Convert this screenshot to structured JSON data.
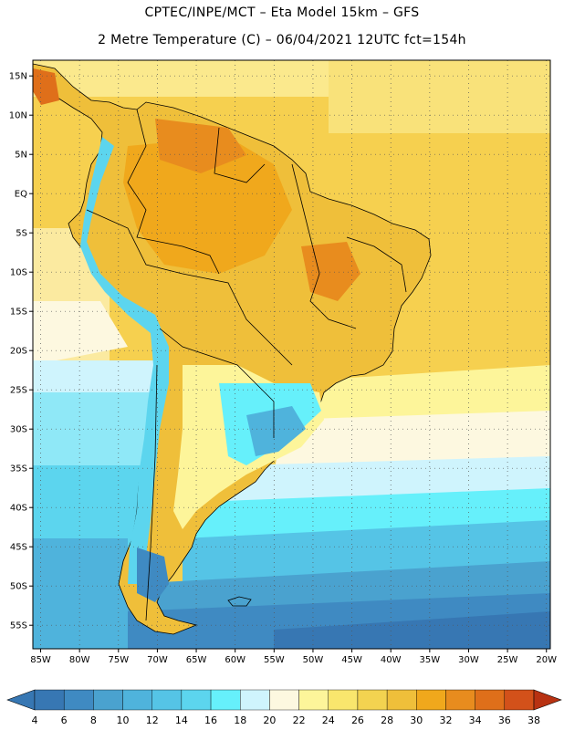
{
  "header": {
    "title_line1": "CPTEC/INPE/MCT –  Eta Model 15km – GFS",
    "title_line2": "2 Metre Temperature (C) – 06/04/2021 12UTC fct=154h"
  },
  "map": {
    "lon_range": [
      -86,
      -19.5
    ],
    "lat_range": [
      -58,
      17
    ],
    "lon_ticks": [
      {
        "value": -85,
        "label": "85W"
      },
      {
        "value": -80,
        "label": "80W"
      },
      {
        "value": -75,
        "label": "75W"
      },
      {
        "value": -70,
        "label": "70W"
      },
      {
        "value": -65,
        "label": "65W"
      },
      {
        "value": -60,
        "label": "60W"
      },
      {
        "value": -55,
        "label": "55W"
      },
      {
        "value": -50,
        "label": "50W"
      },
      {
        "value": -45,
        "label": "45W"
      },
      {
        "value": -40,
        "label": "40W"
      },
      {
        "value": -35,
        "label": "35W"
      },
      {
        "value": -30,
        "label": "30W"
      },
      {
        "value": -25,
        "label": "25W"
      },
      {
        "value": -20,
        "label": "20W"
      }
    ],
    "lat_ticks": [
      {
        "value": 15,
        "label": "15N"
      },
      {
        "value": 10,
        "label": "10N"
      },
      {
        "value": 5,
        "label": "5N"
      },
      {
        "value": 0,
        "label": "EQ"
      },
      {
        "value": -5,
        "label": "5S"
      },
      {
        "value": -10,
        "label": "10S"
      },
      {
        "value": -15,
        "label": "15S"
      },
      {
        "value": -20,
        "label": "20S"
      },
      {
        "value": -25,
        "label": "25S"
      },
      {
        "value": -30,
        "label": "30S"
      },
      {
        "value": -35,
        "label": "35S"
      },
      {
        "value": -40,
        "label": "40S"
      },
      {
        "value": -45,
        "label": "45S"
      },
      {
        "value": -50,
        "label": "50S"
      },
      {
        "value": -55,
        "label": "55S"
      }
    ],
    "grid": "dotted"
  },
  "colorbar": {
    "levels": [
      "4",
      "6",
      "8",
      "10",
      "12",
      "14",
      "16",
      "18",
      "20",
      "22",
      "24",
      "26",
      "28",
      "30",
      "32",
      "34",
      "36",
      "38"
    ],
    "colors": [
      "#3777b3",
      "#3f8ac2",
      "#4aa2cf",
      "#4fb3dc",
      "#55c4e6",
      "#5cd5ee",
      "#66f0fb",
      "#cff4fd",
      "#fdf8e0",
      "#fdf59a",
      "#f9e66d",
      "#f3d350",
      "#efbf3a",
      "#f0a81c",
      "#e88c1e",
      "#df6f1a",
      "#d3511a",
      "#c4401a",
      "#b83212"
    ]
  }
}
